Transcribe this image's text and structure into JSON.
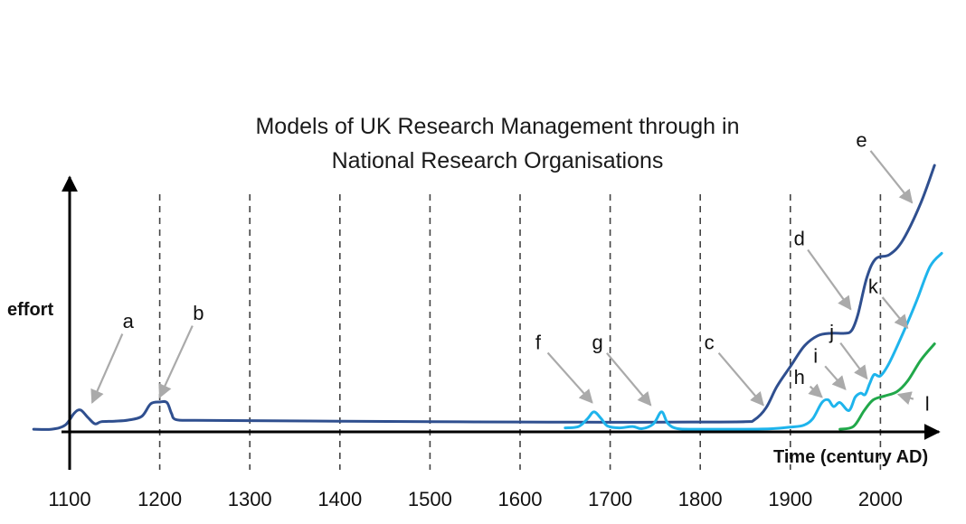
{
  "chart_data": {
    "type": "line",
    "title": [
      "Models of UK Research Management through in",
      "National Research Organisations"
    ],
    "xlabel": "Time (century AD)",
    "ylabel": "effort",
    "x_ticks": [
      1100,
      1200,
      1300,
      1400,
      1500,
      1600,
      1700,
      1800,
      1900,
      2000
    ],
    "xlim": [
      1060,
      2080
    ],
    "ylim": [
      0,
      100
    ],
    "grid": "dashed vertical lines at each century",
    "colors": {
      "dark": "#2f4f8f",
      "light": "#1eb4ec",
      "green": "#21a84a",
      "arrow": "#aaaaaa",
      "axis": "#000000"
    },
    "series": [
      {
        "color": "dark",
        "points": [
          [
            1060,
            1.0
          ],
          [
            1080,
            1.0
          ],
          [
            1095,
            2.5
          ],
          [
            1105,
            7.0
          ],
          [
            1112,
            8.2
          ],
          [
            1120,
            5.5
          ],
          [
            1128,
            3.0
          ],
          [
            1135,
            3.8
          ],
          [
            1150,
            4.0
          ],
          [
            1165,
            4.4
          ],
          [
            1180,
            5.8
          ],
          [
            1190,
            10.5
          ],
          [
            1200,
            11.2
          ],
          [
            1208,
            11.0
          ],
          [
            1213,
            7.0
          ],
          [
            1218,
            4.6
          ],
          [
            1240,
            4.3
          ],
          [
            1300,
            4.2
          ],
          [
            1400,
            4.0
          ],
          [
            1500,
            3.8
          ],
          [
            1600,
            3.7
          ],
          [
            1700,
            3.6
          ],
          [
            1800,
            3.7
          ],
          [
            1850,
            3.8
          ],
          [
            1860,
            4.5
          ],
          [
            1873,
            9.0
          ],
          [
            1885,
            17.0
          ],
          [
            1900,
            24.5
          ],
          [
            1915,
            32.0
          ],
          [
            1930,
            36.0
          ],
          [
            1945,
            37.0
          ],
          [
            1960,
            37.0
          ],
          [
            1968,
            38.0
          ],
          [
            1975,
            44.0
          ],
          [
            1985,
            58.0
          ],
          [
            1995,
            65.0
          ],
          [
            2010,
            66.5
          ],
          [
            2025,
            72.0
          ],
          [
            2045,
            86.0
          ],
          [
            2060,
            100.0
          ]
        ]
      },
      {
        "color": "light",
        "points": [
          [
            1650,
            1.5
          ],
          [
            1665,
            2.0
          ],
          [
            1675,
            5.0
          ],
          [
            1682,
            7.5
          ],
          [
            1690,
            5.0
          ],
          [
            1697,
            2.2
          ],
          [
            1710,
            1.5
          ],
          [
            1725,
            2.0
          ],
          [
            1735,
            1.2
          ],
          [
            1748,
            3.0
          ],
          [
            1757,
            7.5
          ],
          [
            1764,
            3.2
          ],
          [
            1775,
            1.2
          ],
          [
            1800,
            1.0
          ],
          [
            1850,
            1.0
          ],
          [
            1880,
            1.2
          ],
          [
            1900,
            1.8
          ],
          [
            1915,
            2.5
          ],
          [
            1925,
            5.0
          ],
          [
            1935,
            11.0
          ],
          [
            1942,
            12.0
          ],
          [
            1948,
            9.5
          ],
          [
            1955,
            11.0
          ],
          [
            1965,
            8.0
          ],
          [
            1972,
            13.0
          ],
          [
            1978,
            14.5
          ],
          [
            1983,
            14.0
          ],
          [
            1988,
            18.0
          ],
          [
            1993,
            21.5
          ],
          [
            2000,
            21.0
          ],
          [
            2010,
            26.0
          ],
          [
            2025,
            37.0
          ],
          [
            2040,
            49.0
          ],
          [
            2055,
            62.0
          ],
          [
            2068,
            67.0
          ]
        ]
      },
      {
        "color": "green",
        "points": [
          [
            1955,
            1.0
          ],
          [
            1970,
            2.0
          ],
          [
            1982,
            8.0
          ],
          [
            1992,
            12.0
          ],
          [
            2005,
            13.5
          ],
          [
            2018,
            15.0
          ],
          [
            2030,
            19.0
          ],
          [
            2045,
            27.0
          ],
          [
            2060,
            33.0
          ]
        ]
      }
    ],
    "annotations": [
      {
        "label": "a",
        "text_x": 1165,
        "text_y": 39,
        "arrow_to": [
          1125,
          11
        ]
      },
      {
        "label": "b",
        "text_x": 1243,
        "text_y": 42,
        "arrow_to": [
          1200,
          13
        ]
      },
      {
        "label": "f",
        "text_x": 1620,
        "text_y": 31,
        "arrow_to": [
          1680,
          11
        ]
      },
      {
        "label": "g",
        "text_x": 1686,
        "text_y": 31,
        "arrow_to": [
          1745,
          10
        ]
      },
      {
        "label": "c",
        "text_x": 1810,
        "text_y": 31,
        "arrow_to": [
          1870,
          10
        ]
      },
      {
        "label": "h",
        "text_x": 1910,
        "text_y": 18,
        "arrow_to": [
          1935,
          13
        ]
      },
      {
        "label": "i",
        "text_x": 1928,
        "text_y": 26,
        "arrow_to": [
          1961,
          16
        ]
      },
      {
        "label": "j",
        "text_x": 1946,
        "text_y": 35,
        "arrow_to": [
          1985,
          20
        ]
      },
      {
        "label": "d",
        "text_x": 1910,
        "text_y": 70,
        "arrow_to": [
          1967,
          46
        ]
      },
      {
        "label": "k",
        "text_x": 1992,
        "text_y": 52,
        "arrow_to": [
          2030,
          39
        ]
      },
      {
        "label": "e",
        "text_x": 1979,
        "text_y": 107,
        "arrow_to": [
          2035,
          86
        ]
      },
      {
        "label": "l",
        "text_x": 2052,
        "text_y": 8,
        "arrow_to": [
          2020,
          14
        ]
      }
    ]
  }
}
